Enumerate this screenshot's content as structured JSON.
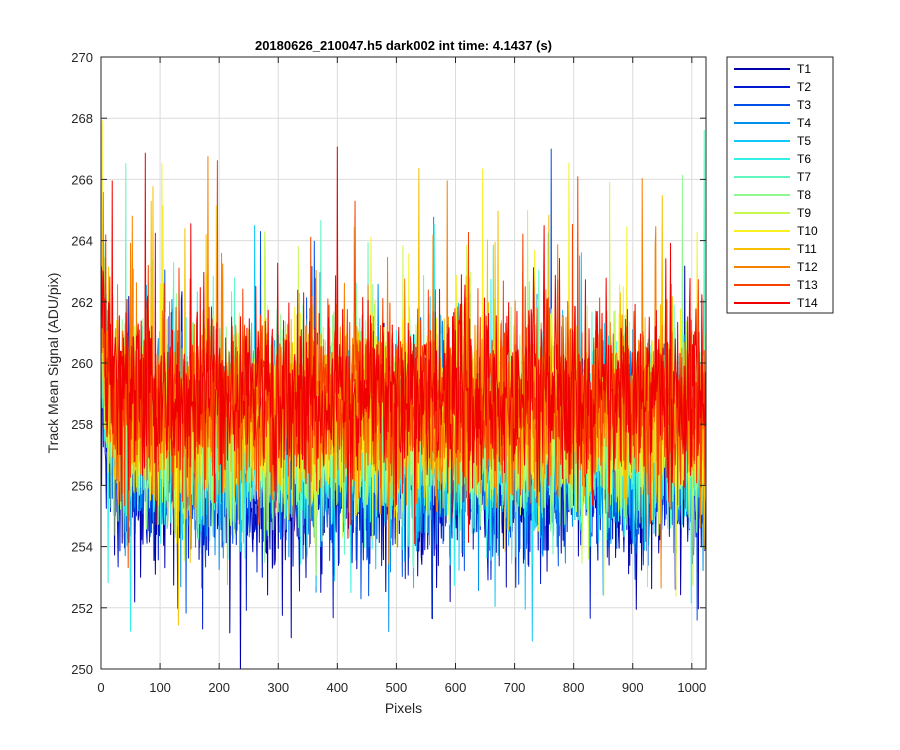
{
  "chart_data": {
    "type": "line",
    "title": "20180626_210047.h5  dark002   int time: 4.1437 (s)",
    "xlabel": "Pixels",
    "ylabel": "Track Mean Signal (ADU/pix)",
    "xlim": [
      0,
      1024
    ],
    "ylim": [
      250,
      270
    ],
    "xticks": [
      "0",
      "100",
      "200",
      "300",
      "400",
      "500",
      "600",
      "700",
      "800",
      "900",
      "1000"
    ],
    "yticks": [
      "250",
      "252",
      "254",
      "256",
      "258",
      "260",
      "262",
      "264",
      "266",
      "268",
      "270"
    ],
    "grid": true,
    "legend_position": "outside-top-right",
    "num_points": 1024,
    "series": [
      {
        "name": "T1",
        "color": "#0000AA",
        "mean": 256.2,
        "std": 1.55,
        "x_start": 1,
        "x_end": 1024
      },
      {
        "name": "T2",
        "color": "#0018D0",
        "mean": 256.5,
        "std": 1.5,
        "x_start": 1,
        "x_end": 1024
      },
      {
        "name": "T3",
        "color": "#0050E8",
        "mean": 256.8,
        "std": 1.5,
        "x_start": 1,
        "x_end": 1024
      },
      {
        "name": "T4",
        "color": "#0090F0",
        "mean": 257.0,
        "std": 1.45,
        "x_start": 1,
        "x_end": 1024
      },
      {
        "name": "T5",
        "color": "#10C8F8",
        "mean": 257.2,
        "std": 1.45,
        "x_start": 1,
        "x_end": 1024
      },
      {
        "name": "T6",
        "color": "#30F0E8",
        "mean": 257.4,
        "std": 1.45,
        "x_start": 1,
        "x_end": 1024
      },
      {
        "name": "T7",
        "color": "#60F8C0",
        "mean": 257.6,
        "std": 1.45,
        "x_start": 1,
        "x_end": 1024
      },
      {
        "name": "T8",
        "color": "#90F890",
        "mean": 257.8,
        "std": 1.45,
        "x_start": 1,
        "x_end": 1024
      },
      {
        "name": "T9",
        "color": "#C8F850",
        "mean": 258.0,
        "std": 1.45,
        "x_start": 1,
        "x_end": 1024
      },
      {
        "name": "T10",
        "color": "#F8F020",
        "mean": 258.2,
        "std": 1.45,
        "x_start": 1,
        "x_end": 1024
      },
      {
        "name": "T11",
        "color": "#F8C000",
        "mean": 258.4,
        "std": 1.45,
        "x_start": 1,
        "x_end": 1024
      },
      {
        "name": "T12",
        "color": "#F88000",
        "mean": 258.6,
        "std": 1.45,
        "x_start": 1,
        "x_end": 1024
      },
      {
        "name": "T13",
        "color": "#F84000",
        "mean": 258.8,
        "std": 1.45,
        "x_start": 1,
        "x_end": 1024
      },
      {
        "name": "T14",
        "color": "#F00000",
        "mean": 259.0,
        "std": 1.5,
        "x_start": 1,
        "x_end": 1024
      }
    ]
  }
}
